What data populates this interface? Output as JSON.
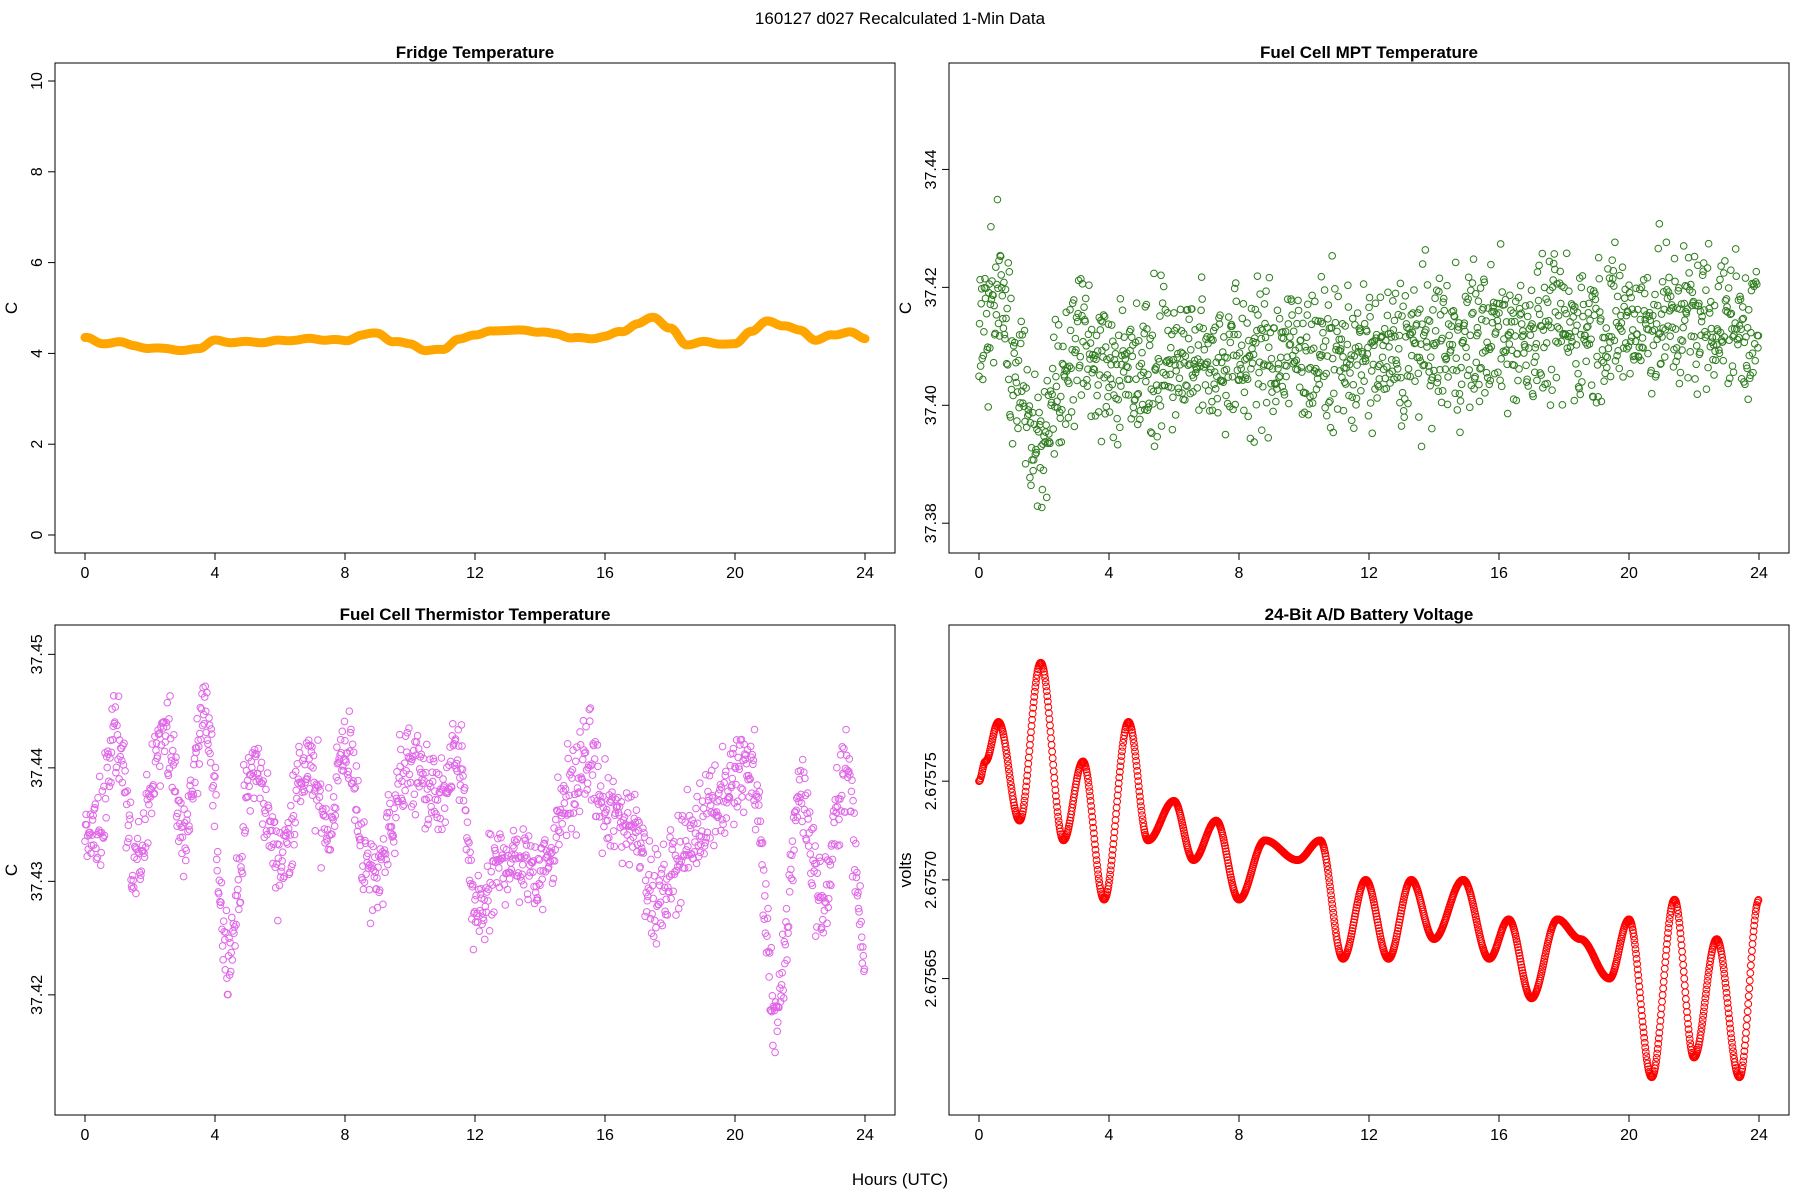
{
  "figure": {
    "title": "160127   d027   Recalculated 1-Min Data",
    "xlabel": "Hours (UTC)"
  },
  "chart_data": [
    {
      "type": "line",
      "title": "Fridge Temperature",
      "xlabel": "Hours (UTC)",
      "ylabel": "C",
      "color": "#FFA500",
      "xlim": [
        0,
        24
      ],
      "ylim": [
        0,
        10
      ],
      "xticks": [
        "0",
        "4",
        "8",
        "12",
        "16",
        "20",
        "24"
      ],
      "yticks": [
        "0",
        "2",
        "4",
        "6",
        "8",
        "10"
      ],
      "x": [
        0,
        0.5,
        1,
        1.5,
        2,
        2.5,
        3,
        3.5,
        4,
        4.5,
        5,
        5.5,
        6,
        6.5,
        7,
        7.5,
        8,
        8.5,
        9,
        9.5,
        10,
        10.5,
        11,
        11.5,
        12,
        12.5,
        13,
        13.5,
        14,
        14.5,
        15,
        15.5,
        16,
        16.5,
        17,
        17.5,
        18,
        18.5,
        19,
        19.5,
        20,
        20.5,
        21,
        21.5,
        22,
        22.5,
        23,
        23.5,
        24
      ],
      "y": [
        4.35,
        4.22,
        4.25,
        4.18,
        4.1,
        4.12,
        4.05,
        4.12,
        4.28,
        4.25,
        4.25,
        4.25,
        4.28,
        4.3,
        4.32,
        4.3,
        4.28,
        4.4,
        4.45,
        4.25,
        4.22,
        4.05,
        4.1,
        4.3,
        4.42,
        4.48,
        4.52,
        4.5,
        4.48,
        4.42,
        4.35,
        4.32,
        4.38,
        4.48,
        4.65,
        4.8,
        4.55,
        4.2,
        4.25,
        4.22,
        4.2,
        4.5,
        4.7,
        4.62,
        4.5,
        4.3,
        4.4,
        4.48,
        4.32
      ],
      "grid": false,
      "legend": "none"
    },
    {
      "type": "scatter",
      "title": "Fuel Cell MPT Temperature",
      "xlabel": "Hours (UTC)",
      "ylabel": "C",
      "color": "#2E7D1E",
      "xlim": [
        0,
        24
      ],
      "ylim": [
        37.378,
        37.455
      ],
      "xticks": [
        "0",
        "4",
        "8",
        "12",
        "16",
        "20",
        "24"
      ],
      "yticks": [
        "37.38",
        "37.40",
        "37.42",
        "37.44"
      ],
      "trend": {
        "x": [
          0,
          0.6,
          1.2,
          1.8,
          2.4,
          3,
          4,
          6,
          8,
          10,
          12,
          14,
          16,
          18,
          20,
          22,
          24
        ],
        "y": [
          37.413,
          37.418,
          37.404,
          37.392,
          37.403,
          37.412,
          37.406,
          37.408,
          37.408,
          37.409,
          37.408,
          37.41,
          37.412,
          37.413,
          37.414,
          37.415,
          37.413
        ]
      },
      "spread": 0.011,
      "n_points": 1440,
      "grid": false,
      "legend": "none"
    },
    {
      "type": "scatter",
      "title": "Fuel Cell Thermistor Temperature",
      "xlabel": "Hours (UTC)",
      "ylabel": "C",
      "color": "#E066E8",
      "xlim": [
        0,
        24
      ],
      "ylim": [
        37.411,
        37.451
      ],
      "xticks": [
        "0",
        "4",
        "8",
        "12",
        "16",
        "20",
        "24"
      ],
      "yticks": [
        "37.42",
        "37.43",
        "37.44",
        "37.45"
      ],
      "trend": {
        "x": [
          0,
          0.3,
          1,
          1.5,
          2.5,
          3,
          3.7,
          4.4,
          5.2,
          6,
          6.8,
          7.5,
          8,
          8.8,
          10,
          11,
          11.5,
          12,
          13,
          14,
          15,
          15.5,
          16,
          17,
          17.5,
          18.5,
          19.3,
          20.5,
          21.3,
          22,
          22.7,
          23.4,
          24
        ],
        "y": [
          37.434,
          37.434,
          37.443,
          37.431,
          37.444,
          37.434,
          37.444,
          37.424,
          37.44,
          37.432,
          37.44,
          37.435,
          37.442,
          37.43,
          37.44,
          37.437,
          37.441,
          37.427,
          37.432,
          37.431,
          37.438,
          37.441,
          37.436,
          37.435,
          37.428,
          37.433,
          37.437,
          37.44,
          37.418,
          37.438,
          37.428,
          37.44,
          37.424
        ],
        "noise_x": [
          0,
          21.3
        ],
        "noise_y": [
          37.414,
          37.424
        ]
      },
      "spread": 0.0035,
      "n_points": 1440,
      "grid": false,
      "legend": "none"
    },
    {
      "type": "line",
      "title": "24-Bit A/D Battery Voltage",
      "xlabel": "Hours (UTC)",
      "ylabel": "volts",
      "color": "#FF0000",
      "xlim": [
        0,
        24
      ],
      "ylim": [
        2.67559,
        2.67582
      ],
      "xticks": [
        "0",
        "4",
        "8",
        "12",
        "16",
        "20",
        "24"
      ],
      "yticks": [
        "2.67565",
        "2.67570",
        "2.67575"
      ],
      "x": [
        0,
        0.2,
        0.6,
        1.25,
        1.9,
        2.6,
        3.2,
        3.85,
        4.6,
        5.2,
        6,
        6.6,
        7.3,
        8,
        8.8,
        9.8,
        10.5,
        11.2,
        11.9,
        12.6,
        13.3,
        14,
        14.9,
        15.7,
        16.3,
        17,
        17.8,
        18.5,
        19.4,
        20,
        20.7,
        21.4,
        22,
        22.7,
        23.4,
        24
      ],
      "y": [
        2.67575,
        2.67576,
        2.67578,
        2.67573,
        2.67581,
        2.67572,
        2.67576,
        2.67569,
        2.67578,
        2.67572,
        2.67574,
        2.67571,
        2.67573,
        2.67569,
        2.67572,
        2.67571,
        2.67572,
        2.67566,
        2.6757,
        2.67566,
        2.6757,
        2.67567,
        2.6757,
        2.67566,
        2.67568,
        2.67564,
        2.67568,
        2.67567,
        2.67565,
        2.67568,
        2.6756,
        2.67569,
        2.67561,
        2.67567,
        2.6756,
        2.67569
      ],
      "grid": false,
      "legend": "none"
    }
  ]
}
